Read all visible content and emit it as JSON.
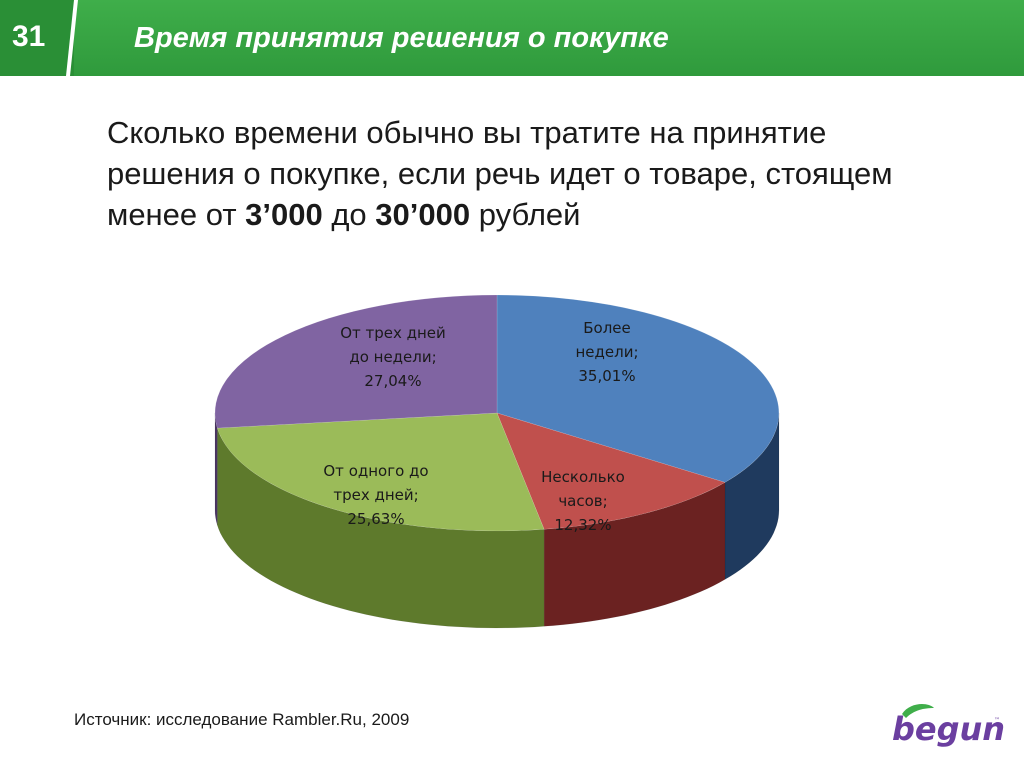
{
  "header": {
    "slide_number": "31",
    "title": "Время принятия решения о покупке"
  },
  "question": {
    "line1": "Сколько времени обычно вы тратите на принятие",
    "line2": "решения о покупке, если речь идет о товаре, стоящем",
    "line3_pre": "менее от ",
    "line3_bold1": "3’000",
    "line3_mid": " до ",
    "line3_bold2": "30’000",
    "line3_post": " рублей"
  },
  "chart_data": {
    "type": "pie",
    "title": "",
    "slices": [
      {
        "label": "Более недели;",
        "value": 35.01,
        "value_text": "35,01%",
        "color": "#4f81bd",
        "side_color": "#1f3a5e"
      },
      {
        "label": "Несколько часов;",
        "value": 12.32,
        "value_text": "12,32%",
        "color": "#c0504d",
        "side_color": "#6b2221"
      },
      {
        "label": "От одного до трех дней;",
        "value": 25.63,
        "value_text": "25,63%",
        "color": "#9bbb59",
        "side_color": "#5e7a2c"
      },
      {
        "label": "От трех дней до недели;",
        "value": 27.04,
        "value_text": "27,04%",
        "color": "#8064a2",
        "side_color": "#4a3563"
      }
    ]
  },
  "source": "Источник: исследование Rambler.Ru, 2009",
  "logo": {
    "text": "begun",
    "leaf_color": "#3fae4a",
    "text_color": "#6b3fa0"
  }
}
